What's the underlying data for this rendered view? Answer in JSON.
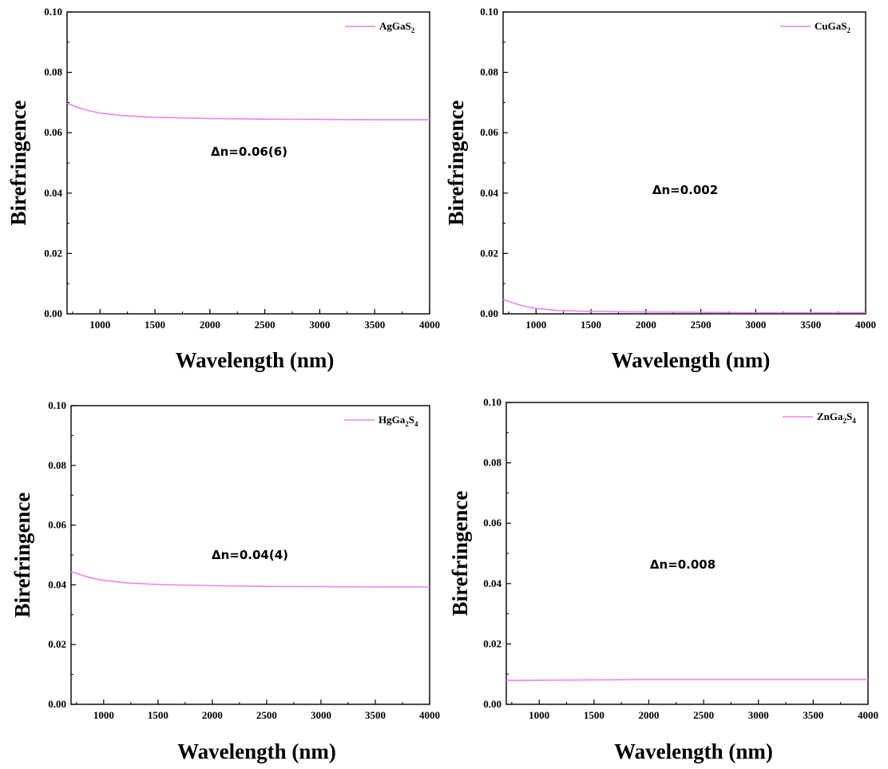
{
  "chart_data": [
    {
      "type": "line",
      "xlabel": "Wavelength (nm)",
      "ylabel": "Birefringence",
      "xlim": [
        700,
        4000
      ],
      "ylim": [
        0,
        0.1
      ],
      "x_ticks": [
        "1000",
        "1500",
        "2000",
        "2500",
        "3000",
        "3500",
        "4000"
      ],
      "y_ticks": [
        "0.00",
        "0.02",
        "0.04",
        "0.06",
        "0.08",
        "0.10"
      ],
      "grid": false,
      "legend_position": "top-right",
      "annotation": "Δn=0.06(6)",
      "series": [
        {
          "name": "AgGaS2",
          "legend_base": "AgGaS",
          "legend_subscript_parts": [
            {
              "t": "AgGaS",
              "sub": false
            },
            {
              "t": "2",
              "sub": true
            }
          ],
          "color": "#ee82ee",
          "x": [
            700,
            800,
            900,
            1000,
            1200,
            1500,
            2000,
            2500,
            3000,
            3500,
            4000
          ],
          "y": [
            0.0698,
            0.0683,
            0.0673,
            0.0665,
            0.0657,
            0.0651,
            0.0647,
            0.0645,
            0.0644,
            0.0643,
            0.0643
          ]
        }
      ]
    },
    {
      "type": "line",
      "xlabel": "Wavelength (nm)",
      "ylabel": "Birefringence",
      "xlim": [
        700,
        4000
      ],
      "ylim": [
        0,
        0.1
      ],
      "x_ticks": [
        "1000",
        "1500",
        "2000",
        "2500",
        "3000",
        "3500",
        "4000"
      ],
      "y_ticks": [
        "0.00",
        "0.02",
        "0.04",
        "0.06",
        "0.08",
        "0.10"
      ],
      "grid": false,
      "legend_position": "top-right",
      "annotation": "Δn=0.002",
      "series": [
        {
          "name": "CuGaS2",
          "legend_subscript_parts": [
            {
              "t": "CuGaS",
              "sub": false
            },
            {
              "t": "2",
              "sub": true
            }
          ],
          "color": "#ee82ee",
          "x": [
            700,
            800,
            900,
            1000,
            1200,
            1500,
            2000,
            2500,
            3000,
            3500,
            4000
          ],
          "y": [
            0.0048,
            0.0035,
            0.0025,
            0.0018,
            0.0011,
            0.0008,
            0.0006,
            0.0005,
            0.0004,
            0.0004,
            0.0004
          ]
        }
      ]
    },
    {
      "type": "line",
      "xlabel": "Wavelength (nm)",
      "ylabel": "Birefringence",
      "xlim": [
        700,
        4000
      ],
      "ylim": [
        0,
        0.1
      ],
      "x_ticks": [
        "1000",
        "1500",
        "2000",
        "2500",
        "3000",
        "3500",
        "4000"
      ],
      "y_ticks": [
        "0.00",
        "0.02",
        "0.04",
        "0.06",
        "0.08",
        "0.10"
      ],
      "grid": false,
      "legend_position": "top-right",
      "annotation": "Δn=0.04(4)",
      "series": [
        {
          "name": "HgGa2S4",
          "legend_subscript_parts": [
            {
              "t": "HgGa",
              "sub": false
            },
            {
              "t": "2",
              "sub": true
            },
            {
              "t": "S",
              "sub": false
            },
            {
              "t": "4",
              "sub": true
            }
          ],
          "color": "#ee82ee",
          "x": [
            700,
            800,
            900,
            1000,
            1200,
            1500,
            2000,
            2500,
            3000,
            3500,
            4000
          ],
          "y": [
            0.0445,
            0.0432,
            0.0422,
            0.0415,
            0.0407,
            0.0401,
            0.0397,
            0.0395,
            0.0394,
            0.0393,
            0.0393
          ]
        }
      ]
    },
    {
      "type": "line",
      "xlabel": "Wavelength (nm)",
      "ylabel": "Birefringence",
      "xlim": [
        700,
        4000
      ],
      "ylim": [
        0,
        0.1
      ],
      "x_ticks": [
        "1000",
        "1500",
        "2000",
        "2500",
        "3000",
        "3500",
        "4000"
      ],
      "y_ticks": [
        "0.00",
        "0.02",
        "0.04",
        "0.06",
        "0.08",
        "0.10"
      ],
      "grid": false,
      "legend_position": "top-right",
      "annotation": "Δn=0.008",
      "series": [
        {
          "name": "ZnGa2S4",
          "legend_subscript_parts": [
            {
              "t": "ZnGa",
              "sub": false
            },
            {
              "t": "2",
              "sub": true
            },
            {
              "t": "S",
              "sub": false
            },
            {
              "t": "4",
              "sub": true
            }
          ],
          "color": "#ee82ee",
          "x": [
            700,
            1000,
            1500,
            2000,
            2500,
            3000,
            3500,
            4000
          ],
          "y": [
            0.0079,
            0.008,
            0.0081,
            0.0082,
            0.0082,
            0.0082,
            0.0082,
            0.0082
          ]
        }
      ]
    }
  ]
}
